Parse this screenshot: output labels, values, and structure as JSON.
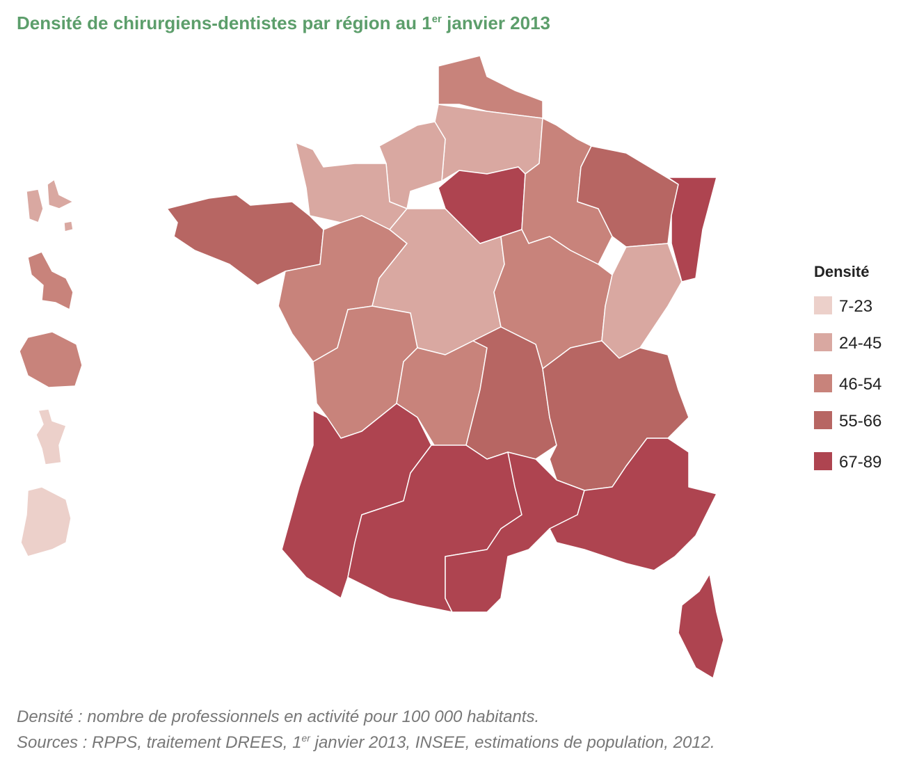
{
  "title": {
    "before": "Densité de chirurgiens-dentistes par région au 1",
    "sup": "er",
    "after": " janvier 2013"
  },
  "legend": {
    "title": "Densité",
    "items": [
      {
        "label": "7-23",
        "color": "#ecd0ca"
      },
      {
        "label": "24-45",
        "color": "#d9a8a1"
      },
      {
        "label": "46-54",
        "color": "#c8837b"
      },
      {
        "label": "55-66",
        "color": "#b76663"
      },
      {
        "label": "67-89",
        "color": "#ae4450"
      }
    ]
  },
  "notes": {
    "definition": "Densité : nombre de professionnels en activité pour 100 000 habitants.",
    "sources": {
      "before": "Sources : RPPS, traitement DREES, 1",
      "sup": "er",
      "after": " janvier 2013, INSEE, estimations de population, 2012."
    }
  }
}
